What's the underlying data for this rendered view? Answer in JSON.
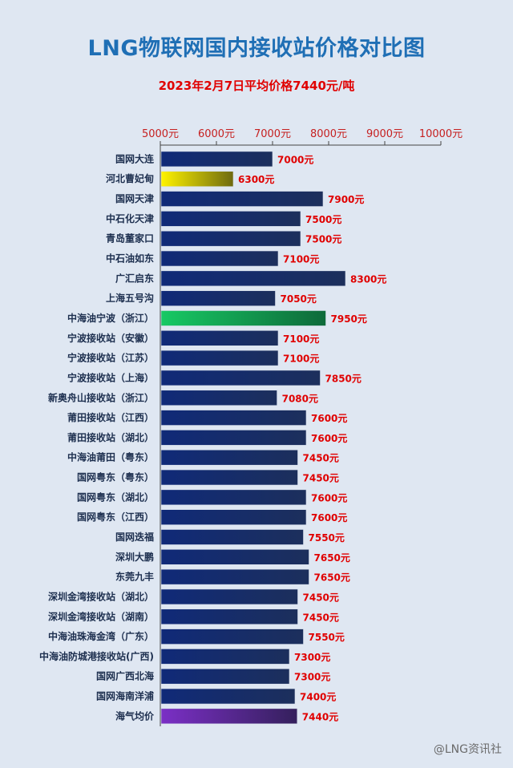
{
  "chart_data": {
    "type": "bar",
    "orientation": "horizontal",
    "title": "LNG物联网国内接收站价格对比图",
    "subtitle": "2023年2月7日平均价格7440元/吨",
    "xlim": [
      5000,
      10000
    ],
    "xticks": [
      "5000元",
      "6000元",
      "7000元",
      "8000元",
      "9000元",
      "10000元"
    ],
    "value_unit": "元",
    "categories": [
      "国网大连",
      "河北曹妃甸",
      "国网天津",
      "中石化天津",
      "青岛董家口",
      "中石油如东",
      "广汇启东",
      "上海五号沟",
      "中海油宁波（浙江）",
      "宁波接收站（安徽）",
      "宁波接收站（江苏）",
      "宁波接收站（上海）",
      "新奥舟山接收站（浙江）",
      "莆田接收站（江西）",
      "莆田接收站（湖北）",
      "中海油莆田（粤东）",
      "国网粤东（粤东）",
      "国网粤东（湖北）",
      "国网粤东（江西）",
      "国网迭福",
      "深圳大鹏",
      "东莞九丰",
      "深圳金湾接收站（湖北）",
      "深圳金湾接收站（湖南）",
      "中海油珠海金湾（广东）",
      "中海油防城港接收站(广西)",
      "国网广西北海",
      "国网海南洋浦",
      "海气均价"
    ],
    "values": [
      7000,
      6300,
      7900,
      7500,
      7500,
      7100,
      8300,
      7050,
      7950,
      7100,
      7100,
      7850,
      7080,
      7600,
      7600,
      7450,
      7450,
      7600,
      7600,
      7550,
      7650,
      7650,
      7450,
      7450,
      7550,
      7300,
      7300,
      7400,
      7440
    ],
    "bar_styles": {
      "default": [
        "#102a78",
        "#1c2f5c"
      ],
      "1": [
        "#fff300",
        "#6e6a10"
      ],
      "8": [
        "#17c964",
        "#0e6a3a"
      ],
      "28": [
        "#7b2fc6",
        "#34205c"
      ]
    },
    "grid": false,
    "legend": "none"
  },
  "watermark": "@LNG资讯社"
}
